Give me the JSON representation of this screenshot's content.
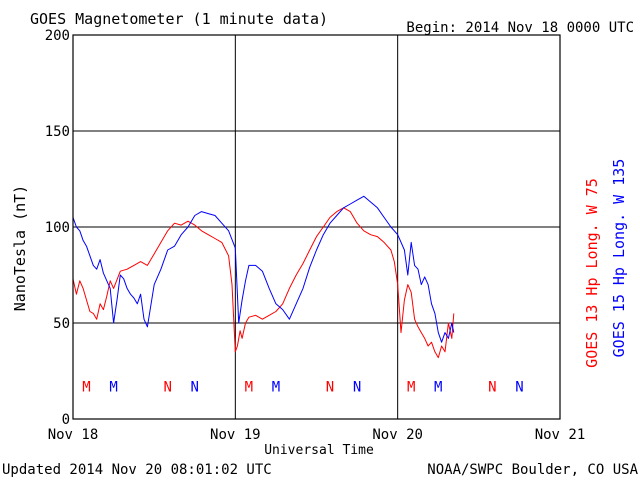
{
  "chart_data": {
    "type": "line",
    "title": "GOES Magnetometer (1 minute data)",
    "begin_label": "Begin:  2014 Nov 18 0000 UTC",
    "xlabel": "Universal Time",
    "ylabel": "NanoTesla (nT)",
    "xlim": [
      0,
      72
    ],
    "ylim": [
      0,
      200
    ],
    "x_unit": "hours since 2014 Nov 18 0000 UTC",
    "yticks": [
      0,
      50,
      100,
      150,
      200
    ],
    "xticks": [
      {
        "x": 0,
        "label": "Nov 18"
      },
      {
        "x": 24,
        "label": "Nov 19"
      },
      {
        "x": 48,
        "label": "Nov 20"
      },
      {
        "x": 72,
        "label": "Nov 21"
      }
    ],
    "grid": true,
    "series": [
      {
        "name": "GOES 13 Hp  Long. W 75",
        "color": "#ff0000",
        "x": [
          0,
          0.5,
          1,
          1.5,
          2,
          2.5,
          3,
          3.5,
          4,
          4.5,
          5,
          5.5,
          6,
          7,
          8,
          9,
          10,
          11,
          12,
          13,
          14,
          15,
          16,
          17,
          18,
          19,
          20,
          21,
          22,
          23,
          23.5,
          24,
          24.3,
          24.7,
          25,
          25.5,
          26,
          27,
          28,
          29,
          30,
          31,
          32,
          33,
          34,
          35,
          36,
          37,
          38,
          39,
          40,
          41,
          42,
          43,
          44,
          45,
          46,
          47,
          47.5,
          48,
          48.5,
          49,
          49.5,
          50,
          50.5,
          51,
          51.5,
          52,
          52.5,
          53,
          53.5,
          54,
          54.5,
          55,
          55.5,
          56,
          56.3
        ],
        "values": [
          73,
          65,
          72,
          68,
          62,
          56,
          55,
          52,
          60,
          57,
          64,
          72,
          68,
          77,
          78,
          80,
          82,
          80,
          86,
          92,
          98,
          102,
          101,
          103,
          101,
          98,
          96,
          94,
          92,
          85,
          70,
          35,
          38,
          46,
          42,
          50,
          53,
          54,
          52,
          54,
          56,
          60,
          68,
          75,
          81,
          88,
          95,
          100,
          105,
          108,
          110,
          108,
          102,
          98,
          96,
          95,
          92,
          88,
          82,
          70,
          45,
          62,
          70,
          66,
          52,
          48,
          45,
          42,
          38,
          40,
          35,
          32,
          38,
          35,
          50,
          42,
          55
        ]
      },
      {
        "name": "GOES 15 Hp  Long. W 135",
        "color": "#0000ff",
        "x": [
          0,
          0.5,
          1,
          1.5,
          2,
          2.5,
          3,
          3.5,
          4,
          4.5,
          5,
          5.5,
          6,
          6.5,
          7,
          7.5,
          8,
          8.5,
          9,
          9.5,
          10,
          10.5,
          11,
          12,
          13,
          14,
          15,
          16,
          17,
          18,
          19,
          20,
          21,
          22,
          23,
          24,
          24.5,
          25,
          25.5,
          26,
          27,
          28,
          29,
          30,
          31,
          32,
          33,
          34,
          35,
          36,
          37,
          38,
          39,
          40,
          41,
          42,
          43,
          44,
          45,
          46,
          47,
          48,
          49,
          49.5,
          50,
          50.5,
          51,
          51.5,
          52,
          52.5,
          53,
          53.5,
          54,
          54.5,
          55,
          55.5,
          56,
          56.3
        ],
        "values": [
          105,
          100,
          98,
          93,
          90,
          85,
          80,
          78,
          83,
          76,
          72,
          68,
          50,
          62,
          75,
          73,
          68,
          65,
          63,
          60,
          65,
          52,
          48,
          70,
          78,
          88,
          90,
          96,
          100,
          106,
          108,
          107,
          106,
          102,
          98,
          89,
          50,
          62,
          72,
          80,
          80,
          77,
          68,
          60,
          57,
          52,
          60,
          68,
          79,
          88,
          96,
          102,
          106,
          110,
          112,
          114,
          116,
          113,
          110,
          105,
          100,
          96,
          88,
          75,
          92,
          80,
          78,
          70,
          74,
          70,
          60,
          55,
          45,
          40,
          45,
          42,
          50,
          45
        ]
      }
    ],
    "markers": [
      {
        "x": 2,
        "label": "M",
        "color": "#ff0000"
      },
      {
        "x": 6,
        "label": "M",
        "color": "#0000ff"
      },
      {
        "x": 14,
        "label": "N",
        "color": "#ff0000"
      },
      {
        "x": 18,
        "label": "N",
        "color": "#0000ff"
      },
      {
        "x": 26,
        "label": "M",
        "color": "#ff0000"
      },
      {
        "x": 30,
        "label": "M",
        "color": "#0000ff"
      },
      {
        "x": 38,
        "label": "N",
        "color": "#ff0000"
      },
      {
        "x": 42,
        "label": "N",
        "color": "#0000ff"
      },
      {
        "x": 50,
        "label": "M",
        "color": "#ff0000"
      },
      {
        "x": 54,
        "label": "M",
        "color": "#0000ff"
      },
      {
        "x": 62,
        "label": "N",
        "color": "#ff0000"
      },
      {
        "x": 66,
        "label": "N",
        "color": "#0000ff"
      }
    ],
    "marker_level": 17,
    "updated_label": "Updated 2014 Nov 20 08:01:02 UTC",
    "source_label": "NOAA/SWPC Boulder, CO USA"
  }
}
